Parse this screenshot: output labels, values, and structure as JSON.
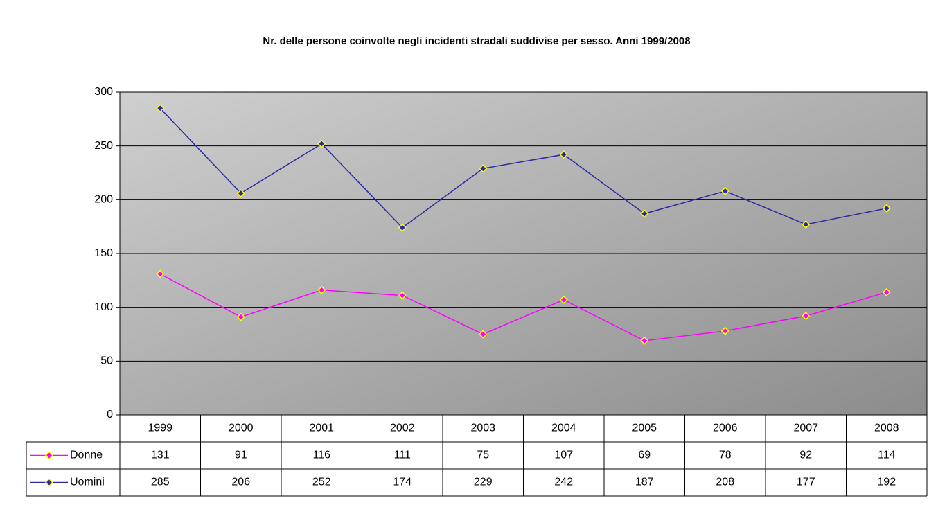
{
  "chart_data": {
    "type": "line",
    "title": "Nr. delle persone coinvolte negli incidenti stradali suddivise per sesso. Anni 1999/2008",
    "categories": [
      "1999",
      "2000",
      "2001",
      "2002",
      "2003",
      "2004",
      "2005",
      "2006",
      "2007",
      "2008"
    ],
    "series": [
      {
        "name": "Donne",
        "color": "#ff00ff",
        "values": [
          131,
          91,
          116,
          111,
          75,
          107,
          69,
          78,
          92,
          114
        ]
      },
      {
        "name": "Uomini",
        "color": "#2a2aa0",
        "values": [
          285,
          206,
          252,
          174,
          229,
          242,
          187,
          208,
          177,
          192
        ]
      }
    ],
    "ylim": [
      0,
      300
    ],
    "yticks": [
      0,
      50,
      100,
      150,
      200,
      250,
      300
    ],
    "grid": true
  }
}
